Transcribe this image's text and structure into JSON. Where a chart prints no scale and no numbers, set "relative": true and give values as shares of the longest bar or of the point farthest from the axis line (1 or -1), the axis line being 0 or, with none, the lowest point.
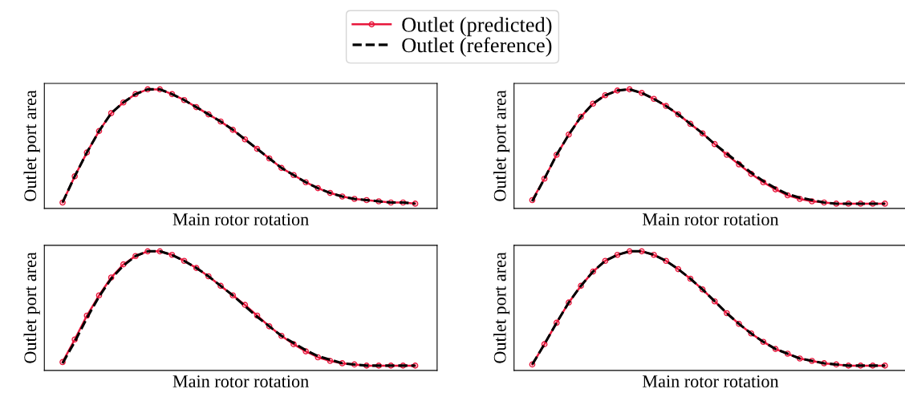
{
  "chart_data": [
    {
      "type": "line",
      "relative": true,
      "xlabel": "Main rotor rotation",
      "ylabel": "Outlet port area",
      "legend": "top",
      "categories": [
        null,
        null,
        null,
        null,
        null,
        null,
        null,
        null,
        null,
        null,
        null,
        null,
        null,
        null,
        null,
        null,
        null,
        null,
        null,
        null,
        null,
        null,
        null,
        null,
        null,
        null,
        null,
        null,
        null,
        null
      ],
      "series": [
        {
          "name": "Outlet (predicted)",
          "color": "#e8173c",
          "marker": "circle",
          "line_style": "solid",
          "values": [
            0.05,
            0.27,
            0.47,
            0.65,
            0.8,
            0.89,
            0.96,
            1.0,
            1.0,
            0.96,
            0.91,
            0.85,
            0.79,
            0.73,
            0.66,
            0.58,
            0.5,
            0.42,
            0.34,
            0.28,
            0.22,
            0.17,
            0.13,
            0.1,
            0.08,
            0.07,
            0.06,
            0.05,
            0.05,
            0.04
          ]
        },
        {
          "name": "Outlet (reference)",
          "color": "#000000",
          "marker": "none",
          "line_style": "dashed",
          "values": [
            0.05,
            0.27,
            0.47,
            0.65,
            0.8,
            0.89,
            0.96,
            1.0,
            1.0,
            0.96,
            0.91,
            0.85,
            0.79,
            0.73,
            0.66,
            0.58,
            0.5,
            0.42,
            0.34,
            0.28,
            0.22,
            0.17,
            0.13,
            0.1,
            0.08,
            0.07,
            0.06,
            0.05,
            0.05,
            0.04
          ]
        }
      ]
    },
    {
      "type": "line",
      "relative": true,
      "xlabel": "Main rotor rotation",
      "ylabel": "Outlet port area",
      "categories": [
        null,
        null,
        null,
        null,
        null,
        null,
        null,
        null,
        null,
        null,
        null,
        null,
        null,
        null,
        null,
        null,
        null,
        null,
        null,
        null,
        null,
        null,
        null,
        null,
        null,
        null,
        null,
        null,
        null,
        null
      ],
      "series": [
        {
          "name": "Outlet (predicted)",
          "color": "#e8173c",
          "marker": "circle",
          "line_style": "solid",
          "values": [
            0.07,
            0.25,
            0.45,
            0.62,
            0.77,
            0.88,
            0.95,
            0.99,
            1.0,
            0.97,
            0.92,
            0.86,
            0.79,
            0.71,
            0.63,
            0.54,
            0.45,
            0.37,
            0.29,
            0.22,
            0.16,
            0.11,
            0.08,
            0.06,
            0.05,
            0.04,
            0.04,
            0.04,
            0.04,
            0.04
          ]
        },
        {
          "name": "Outlet (reference)",
          "color": "#000000",
          "marker": "none",
          "line_style": "dashed",
          "values": [
            0.06,
            0.25,
            0.45,
            0.62,
            0.77,
            0.88,
            0.95,
            0.99,
            1.0,
            0.97,
            0.92,
            0.86,
            0.79,
            0.71,
            0.63,
            0.54,
            0.46,
            0.38,
            0.3,
            0.23,
            0.17,
            0.12,
            0.09,
            0.07,
            0.05,
            0.04,
            0.04,
            0.04,
            0.04,
            0.04
          ]
        }
      ]
    },
    {
      "type": "line",
      "relative": true,
      "xlabel": "Main rotor rotation",
      "ylabel": "Outlet port area",
      "categories": [
        null,
        null,
        null,
        null,
        null,
        null,
        null,
        null,
        null,
        null,
        null,
        null,
        null,
        null,
        null,
        null,
        null,
        null,
        null,
        null,
        null,
        null,
        null,
        null,
        null,
        null,
        null,
        null,
        null,
        null
      ],
      "series": [
        {
          "name": "Outlet (predicted)",
          "color": "#e8173c",
          "marker": "circle",
          "line_style": "solid",
          "values": [
            0.07,
            0.26,
            0.46,
            0.63,
            0.78,
            0.89,
            0.96,
            1.0,
            1.0,
            0.97,
            0.92,
            0.86,
            0.79,
            0.71,
            0.63,
            0.55,
            0.46,
            0.37,
            0.29,
            0.22,
            0.16,
            0.11,
            0.08,
            0.06,
            0.05,
            0.04,
            0.04,
            0.04,
            0.04,
            0.04
          ]
        },
        {
          "name": "Outlet (reference)",
          "color": "#000000",
          "marker": "none",
          "line_style": "dashed",
          "values": [
            0.06,
            0.24,
            0.44,
            0.62,
            0.77,
            0.88,
            0.96,
            1.0,
            1.0,
            0.97,
            0.92,
            0.86,
            0.79,
            0.71,
            0.63,
            0.54,
            0.45,
            0.37,
            0.29,
            0.23,
            0.17,
            0.12,
            0.09,
            0.06,
            0.05,
            0.04,
            0.04,
            0.04,
            0.04,
            0.04
          ]
        }
      ]
    },
    {
      "type": "line",
      "relative": true,
      "xlabel": "Main rotor rotation",
      "ylabel": "Outlet port area",
      "categories": [
        null,
        null,
        null,
        null,
        null,
        null,
        null,
        null,
        null,
        null,
        null,
        null,
        null,
        null,
        null,
        null,
        null,
        null,
        null,
        null,
        null,
        null,
        null,
        null,
        null,
        null,
        null,
        null,
        null,
        null
      ],
      "series": [
        {
          "name": "Outlet (predicted)",
          "color": "#e8173c",
          "marker": "circle",
          "line_style": "solid",
          "values": [
            0.05,
            0.22,
            0.4,
            0.57,
            0.71,
            0.83,
            0.92,
            0.97,
            1.0,
            1.0,
            0.97,
            0.92,
            0.85,
            0.77,
            0.68,
            0.58,
            0.48,
            0.39,
            0.31,
            0.24,
            0.18,
            0.14,
            0.1,
            0.08,
            0.06,
            0.05,
            0.04,
            0.04,
            0.04,
            0.04
          ]
        },
        {
          "name": "Outlet (reference)",
          "color": "#000000",
          "marker": "none",
          "line_style": "dashed",
          "values": [
            0.05,
            0.22,
            0.4,
            0.57,
            0.71,
            0.83,
            0.92,
            0.97,
            1.0,
            1.0,
            0.97,
            0.92,
            0.85,
            0.77,
            0.68,
            0.58,
            0.48,
            0.39,
            0.31,
            0.24,
            0.18,
            0.14,
            0.1,
            0.08,
            0.06,
            0.05,
            0.04,
            0.04,
            0.04,
            0.04
          ]
        }
      ]
    }
  ]
}
